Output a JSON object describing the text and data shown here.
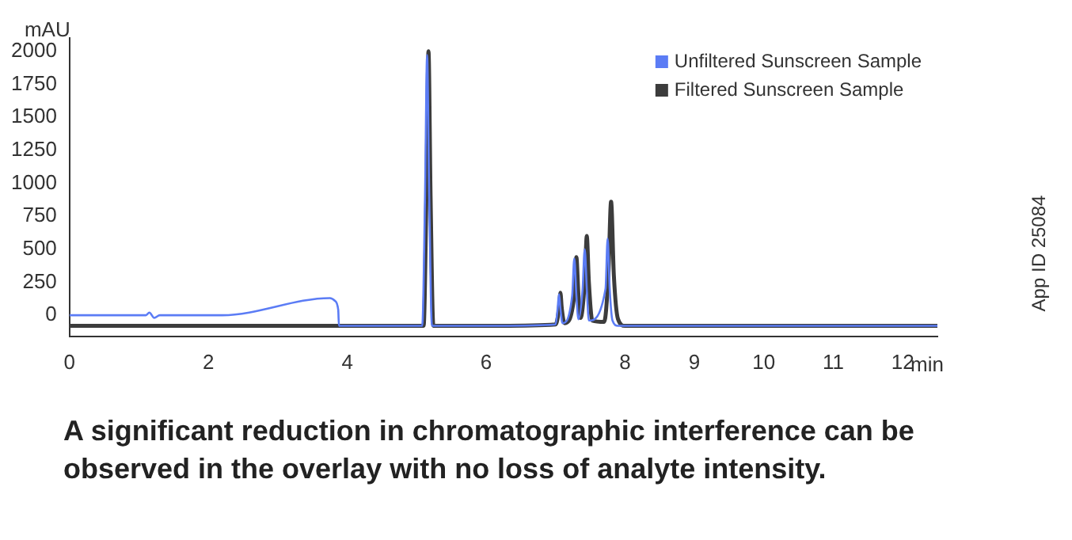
{
  "chart_data": {
    "type": "line",
    "xlabel": "min",
    "ylabel": "mAU",
    "annotations": [
      "A significant reduction in chromatographic interference can be observed in the overlay with no loss of analyte intensity.",
      "App ID 25084"
    ],
    "xlim": [
      0,
      12.5
    ],
    "xticks": [
      0,
      2,
      4,
      6,
      8,
      9,
      10,
      11,
      12
    ],
    "ylim": [
      -160,
      2100
    ],
    "yticks": [
      0,
      250,
      500,
      750,
      1000,
      1250,
      1500,
      1750,
      2000
    ],
    "grid": false,
    "legend": "top right",
    "marker": "none",
    "line_style": "solid",
    "series": [
      {
        "name": "Unfiltered Sunscreen Sample",
        "color": "#5b7cf5",
        "x": [
          0,
          1.1,
          1.15,
          1.22,
          1.3,
          2.2,
          3.75,
          3.82,
          3.87,
          3.88,
          5.08,
          5.12,
          5.15,
          5.18,
          5.22,
          6.2,
          7.0,
          7.03,
          7.05,
          7.07,
          7.1,
          7.24,
          7.27,
          7.3,
          7.33,
          7.39,
          7.42,
          7.45,
          7.48,
          7.72,
          7.75,
          7.78,
          7.82,
          7.9,
          12.5
        ],
        "values": [
          0,
          0,
          20,
          -20,
          0,
          0,
          130,
          110,
          40,
          -80,
          -80,
          900,
          1970,
          900,
          -80,
          -80,
          -70,
          50,
          160,
          50,
          -60,
          150,
          430,
          150,
          -30,
          200,
          500,
          200,
          -40,
          200,
          580,
          200,
          -40,
          -80,
          -80
        ]
      },
      {
        "name": "Filtered Sunscreen Sample",
        "color": "#3c3c3c",
        "x": [
          0,
          5.1,
          5.14,
          5.17,
          5.2,
          5.24,
          6.2,
          7.0,
          7.05,
          7.07,
          7.09,
          7.13,
          7.27,
          7.3,
          7.33,
          7.36,
          7.42,
          7.45,
          7.48,
          7.53,
          7.7,
          7.76,
          7.8,
          7.84,
          7.9,
          8.0,
          12.5
        ],
        "values": [
          -80,
          -80,
          900,
          2000,
          900,
          -80,
          -80,
          -70,
          50,
          170,
          50,
          -60,
          150,
          440,
          150,
          -20,
          250,
          600,
          250,
          -40,
          -50,
          300,
          860,
          300,
          -30,
          -80,
          -80
        ]
      }
    ]
  }
}
